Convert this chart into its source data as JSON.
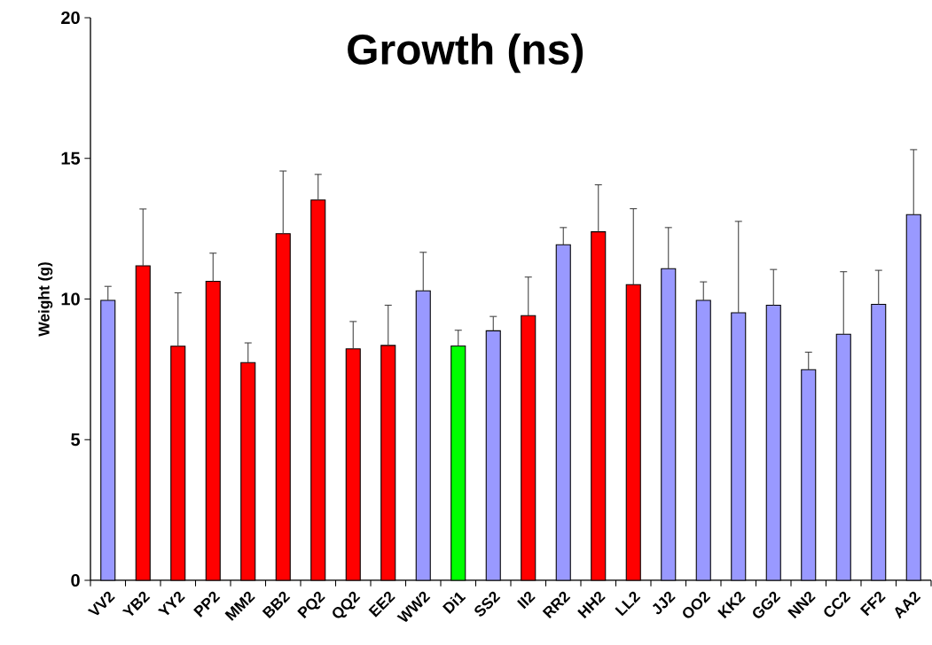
{
  "chart_data": {
    "type": "bar",
    "title": "Growth (ns)",
    "ylabel": "Weight (g)",
    "categories": [
      "VV2",
      "YB2",
      "YY2",
      "PP2",
      "MM2",
      "BB2",
      "PQ2",
      "QQ2",
      "EE2",
      "WW2",
      "Di1",
      "SS2",
      "II2",
      "RR2",
      "HH2",
      "LL2",
      "JJ2",
      "OO2",
      "KK2",
      "GG2",
      "NN2",
      "CC2",
      "FF2",
      "AA2"
    ],
    "values": [
      9.95,
      11.18,
      8.32,
      10.63,
      7.74,
      12.32,
      13.52,
      8.23,
      8.35,
      10.29,
      8.33,
      8.87,
      9.41,
      11.93,
      12.39,
      10.51,
      11.08,
      9.95,
      9.51,
      9.78,
      7.49,
      8.75,
      9.81,
      13.0
    ],
    "colors": [
      "#9999ff",
      "#ff0000",
      "#ff0000",
      "#ff0000",
      "#ff0000",
      "#ff0000",
      "#ff0000",
      "#ff0000",
      "#ff0000",
      "#9999ff",
      "#00ff00",
      "#9999ff",
      "#ff0000",
      "#9999ff",
      "#ff0000",
      "#ff0000",
      "#9999ff",
      "#9999ff",
      "#9999ff",
      "#9999ff",
      "#9999ff",
      "#9999ff",
      "#9999ff",
      "#9999ff"
    ],
    "errors": [
      [
        9.95,
        10.45
      ],
      [
        11.18,
        13.2
      ],
      [
        8.32,
        10.22
      ],
      [
        10.63,
        11.63
      ],
      [
        7.74,
        8.44
      ],
      [
        12.32,
        14.55
      ],
      [
        13.52,
        14.43
      ],
      [
        8.23,
        9.2
      ],
      [
        8.35,
        9.78
      ],
      [
        10.29,
        11.66
      ],
      [
        8.33,
        8.89
      ],
      [
        8.87,
        9.38
      ],
      [
        9.41,
        10.78
      ],
      [
        11.93,
        12.54
      ],
      [
        12.39,
        14.06
      ],
      [
        10.51,
        13.21
      ],
      [
        11.08,
        12.54
      ],
      [
        9.95,
        10.61
      ],
      [
        9.51,
        12.76
      ],
      [
        9.78,
        11.05
      ],
      [
        7.49,
        8.11
      ],
      [
        8.75,
        10.97
      ],
      [
        9.81,
        11.02
      ],
      [
        13.0,
        15.31
      ]
    ],
    "ylim": [
      0,
      20
    ],
    "yticks": [
      0,
      5,
      10,
      15,
      20
    ]
  }
}
